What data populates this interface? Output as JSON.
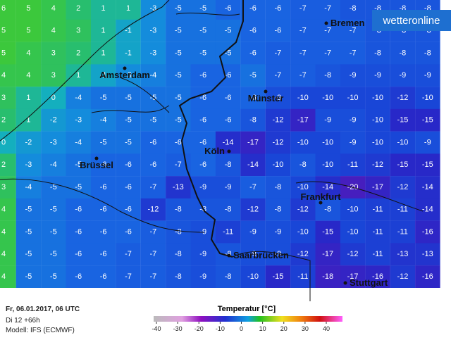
{
  "logo": "wetteronline",
  "grid": {
    "values": [
      [
        6,
        5,
        4,
        2,
        1,
        1,
        -3,
        -5,
        -5,
        -6,
        -6,
        -6,
        -7,
        -7,
        -8,
        -8,
        -8,
        -8
      ],
      [
        5,
        5,
        4,
        3,
        1,
        -1,
        -3,
        -5,
        -5,
        -5,
        -6,
        -6,
        -7,
        -7,
        -7,
        -8,
        -8,
        -8
      ],
      [
        5,
        4,
        3,
        2,
        1,
        -1,
        -3,
        -5,
        -5,
        -5,
        -6,
        -7,
        -7,
        -7,
        -7,
        -8,
        -8,
        -8
      ],
      [
        4,
        4,
        3,
        1,
        -1,
        -3,
        -4,
        -5,
        -6,
        -6,
        -5,
        -7,
        -7,
        -8,
        -9,
        -9,
        -9,
        -9
      ],
      [
        3,
        1,
        0,
        -4,
        -5,
        -5,
        -5,
        -5,
        -6,
        -6,
        -6,
        -9,
        -10,
        -10,
        -10,
        -10,
        -12,
        -10
      ],
      [
        2,
        1,
        -2,
        -3,
        -4,
        -5,
        -5,
        -5,
        -6,
        -6,
        -8,
        -12,
        -17,
        -9,
        -9,
        -10,
        -15,
        -15
      ],
      [
        0,
        -2,
        -3,
        -4,
        -5,
        -5,
        -6,
        -6,
        -6,
        -14,
        -17,
        -12,
        -10,
        -10,
        -9,
        -10,
        -10,
        -9
      ],
      [
        2,
        -3,
        -4,
        -5,
        -6,
        -6,
        -6,
        -7,
        -6,
        -8,
        -14,
        -10,
        -8,
        -10,
        -11,
        -12,
        -15,
        -15
      ],
      [
        3,
        -4,
        -5,
        -5,
        -6,
        -6,
        -7,
        -13,
        -9,
        -9,
        -7,
        -8,
        -10,
        -14,
        -20,
        -17,
        -12,
        -14
      ],
      [
        4,
        -5,
        -5,
        -6,
        -6,
        -6,
        -12,
        -8,
        -8,
        -8,
        -12,
        -8,
        -12,
        -8,
        -10,
        -11,
        -11,
        -14
      ],
      [
        4,
        -5,
        -5,
        -6,
        -6,
        -6,
        -7,
        -8,
        -9,
        -11,
        -9,
        -9,
        -10,
        -15,
        -10,
        -11,
        -11,
        -16
      ],
      [
        4,
        -5,
        -5,
        -6,
        -6,
        -7,
        -7,
        -8,
        -9,
        -8,
        -9,
        -9,
        -12,
        -17,
        -12,
        -11,
        -13,
        -13
      ],
      [
        4,
        -5,
        -5,
        -6,
        -6,
        -7,
        -7,
        -8,
        -9,
        -8,
        -10,
        -15,
        -11,
        -18,
        -17,
        -16,
        -12,
        -16
      ]
    ]
  },
  "cities": [
    "Bremen",
    "Amsterdam",
    "Münster",
    "Köln",
    "Brüssel",
    "Frankfurt",
    "Saarbrücken",
    "Stuttgart"
  ],
  "footer": {
    "date": "Fr, 06.01.2017, 06 UTC",
    "run": "Di 12 +66h",
    "model": "Modell: IFS (ECMWF)"
  },
  "legend": {
    "title": "Temperatur [°C]",
    "ticks": [
      -40,
      -30,
      -20,
      -10,
      0,
      10,
      20,
      30,
      40
    ]
  }
}
